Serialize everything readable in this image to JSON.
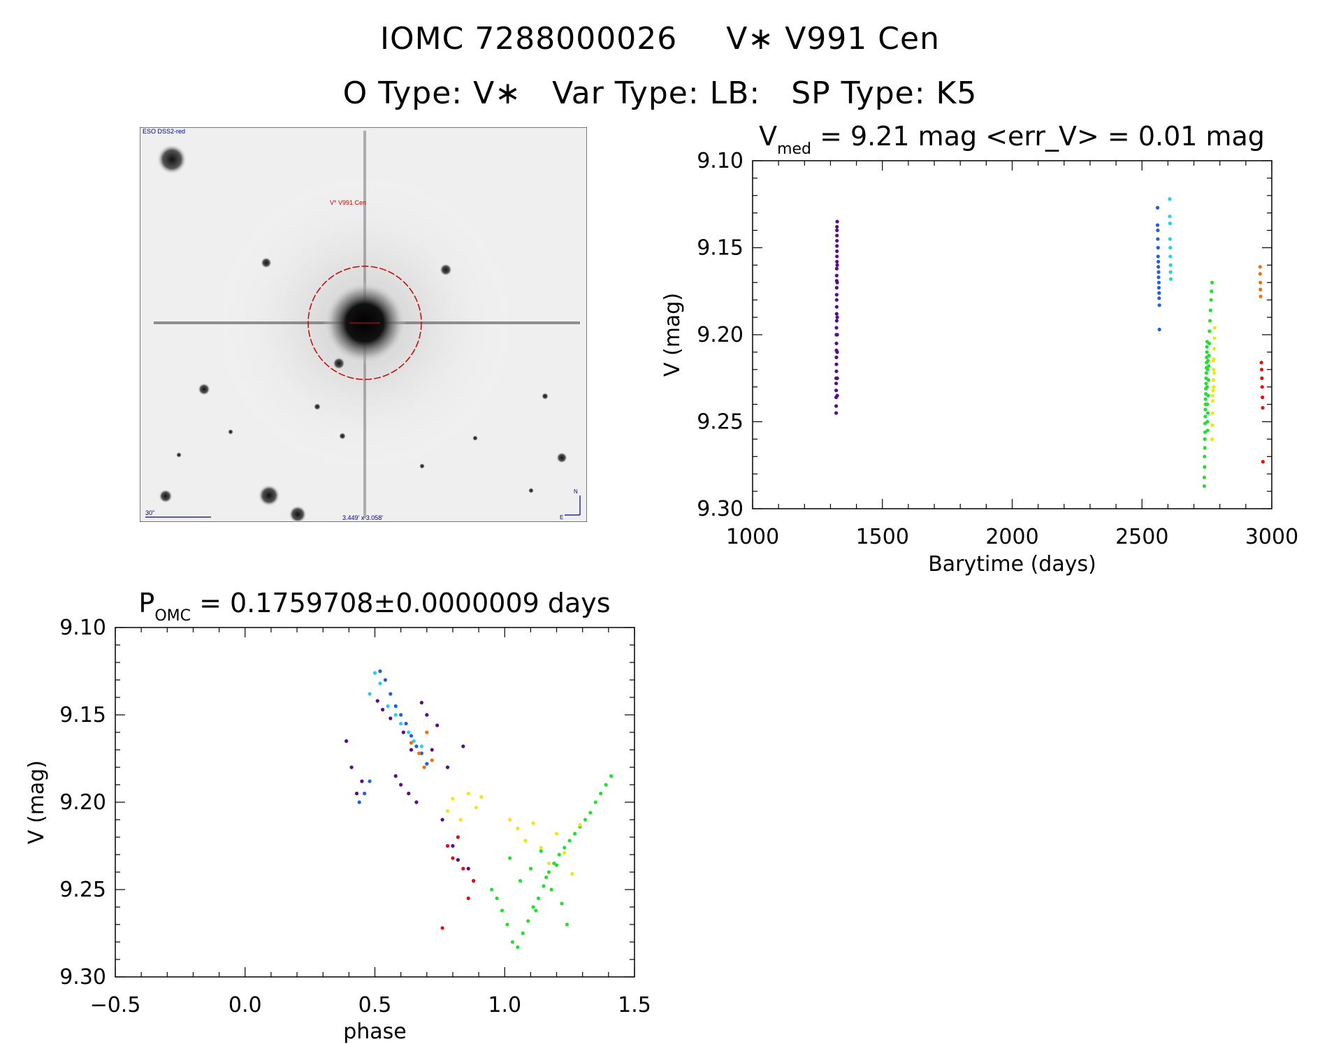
{
  "header": {
    "line1_id": "IOMC 7288000026",
    "line1_name": "V∗ V991 Cen",
    "line2_otype": "O Type: V∗",
    "line2_vartype": "Var Type: LB:",
    "line2_sptype": "SP Type: K5"
  },
  "finder_chart": {
    "survey_label": "ESO DSS2-red",
    "target_label": "V* V991 Cen",
    "scale_label": "30\"",
    "fov_label": "3.449' x 3.058'",
    "north_label": "N",
    "east_label": "E",
    "colors": {
      "annotation": "#000080",
      "circle": "#cc0000"
    }
  },
  "chart_data": [
    {
      "id": "light_curve",
      "type": "scatter",
      "title_main": "V",
      "title_sub": "med",
      "title_rest": "= 9.21 mag <err_V> = 0.01 mag",
      "xlabel": "Barytime (days)",
      "ylabel": "V (mag)",
      "xlim": [
        1000,
        3000
      ],
      "ylim": [
        9.3,
        9.1
      ],
      "y_inverted": true,
      "xticks": [
        1000,
        1500,
        2000,
        2500,
        3000
      ],
      "xtick_labels": [
        "1000",
        "1500",
        "2000",
        "2500",
        "3000"
      ],
      "yticks": [
        9.1,
        9.15,
        9.2,
        9.25,
        9.3
      ],
      "ytick_labels": [
        "9.10",
        "9.15",
        "9.20",
        "9.25",
        "9.30"
      ],
      "series": [
        {
          "color": "#5a0a8c",
          "x": [
            1322,
            1322,
            1322,
            1322,
            1322,
            1322,
            1323,
            1323,
            1323,
            1323,
            1323,
            1323,
            1323,
            1324,
            1324,
            1324,
            1324,
            1324,
            1324,
            1324,
            1324,
            1324,
            1325,
            1325,
            1325,
            1325,
            1325,
            1325,
            1325,
            1325,
            1326,
            1326,
            1326,
            1326,
            1326,
            1326,
            1326,
            1326
          ],
          "y": [
            9.245,
            9.241,
            9.236,
            9.232,
            9.228,
            9.225,
            9.221,
            9.217,
            9.213,
            9.209,
            9.205,
            9.2,
            9.196,
            9.192,
            9.188,
            9.184,
            9.18,
            9.177,
            9.173,
            9.169,
            9.166,
            9.162,
            9.158,
            9.155,
            9.152,
            9.149,
            9.146,
            9.143,
            9.14,
            9.138,
            9.135,
            9.16,
            9.17,
            9.19,
            9.2,
            9.21,
            9.225,
            9.235
          ]
        },
        {
          "color": "#1f5fe0",
          "x": [
            2560,
            2560,
            2561,
            2561,
            2562,
            2562,
            2563,
            2563,
            2564,
            2564,
            2565,
            2565,
            2566,
            2566,
            2567,
            2567
          ],
          "y": [
            9.127,
            9.137,
            9.14,
            9.145,
            9.15,
            9.155,
            9.158,
            9.161,
            9.164,
            9.167,
            9.17,
            9.173,
            9.176,
            9.179,
            9.183,
            9.197
          ]
        },
        {
          "color": "#22d3df",
          "x": [
            2607,
            2607,
            2608,
            2608,
            2609,
            2609,
            2610,
            2610,
            2611
          ],
          "y": [
            9.122,
            9.132,
            9.136,
            9.145,
            9.15,
            9.155,
            9.16,
            9.164,
            9.168
          ]
        },
        {
          "color": "#22e030",
          "x": [
            2740,
            2740,
            2741,
            2741,
            2742,
            2742,
            2743,
            2743,
            2744,
            2744,
            2745,
            2745,
            2746,
            2746,
            2747,
            2747,
            2748,
            2748,
            2749,
            2749,
            2750,
            2750,
            2751,
            2751,
            2752,
            2752,
            2753,
            2753,
            2754,
            2754,
            2755,
            2756,
            2757,
            2758,
            2759,
            2760,
            2762,
            2764,
            2766,
            2768,
            2770
          ],
          "y": [
            9.287,
            9.282,
            9.276,
            9.27,
            9.265,
            9.26,
            9.256,
            9.251,
            9.247,
            9.243,
            9.24,
            9.237,
            9.234,
            9.231,
            9.228,
            9.225,
            9.222,
            9.219,
            9.216,
            9.213,
            9.21,
            9.207,
            9.204,
            9.23,
            9.24,
            9.25,
            9.255,
            9.22,
            9.215,
            9.245,
            9.235,
            9.226,
            9.218,
            9.212,
            9.205,
            9.198,
            9.192,
            9.186,
            9.18,
            9.175,
            9.17
          ]
        },
        {
          "color": "#eaea10",
          "x": [
            2770,
            2771,
            2772,
            2773,
            2774,
            2775,
            2776,
            2777,
            2778,
            2779,
            2780,
            2772,
            2774,
            2776,
            2778
          ],
          "y": [
            9.26,
            9.252,
            9.245,
            9.238,
            9.232,
            9.226,
            9.22,
            9.214,
            9.208,
            9.202,
            9.196,
            9.235,
            9.215,
            9.23,
            9.222
          ]
        },
        {
          "color": "#f07010",
          "x": [
            2955,
            2955,
            2956,
            2956,
            2957
          ],
          "y": [
            9.161,
            9.165,
            9.17,
            9.174,
            9.178
          ]
        },
        {
          "color": "#e01010",
          "x": [
            2960,
            2961,
            2962,
            2963,
            2964,
            2965,
            2966
          ],
          "y": [
            9.216,
            9.22,
            9.225,
            9.23,
            9.236,
            9.242,
            9.273
          ]
        }
      ]
    },
    {
      "id": "phased_curve",
      "type": "scatter",
      "title_main": "P",
      "title_sub": "OMC",
      "title_rest": "= 0.1759708±0.0000009 days",
      "xlabel": "phase",
      "ylabel": "V (mag)",
      "xlim": [
        -0.5,
        1.5
      ],
      "ylim": [
        9.3,
        9.1
      ],
      "y_inverted": true,
      "xticks": [
        -0.5,
        0.0,
        0.5,
        1.0,
        1.5
      ],
      "xtick_labels": [
        "−0.5",
        "0.0",
        "0.5",
        "1.0",
        "1.5"
      ],
      "yticks": [
        9.1,
        9.15,
        9.2,
        9.25,
        9.3
      ],
      "ytick_labels": [
        "9.10",
        "9.15",
        "9.20",
        "9.25",
        "9.30"
      ],
      "series": [
        {
          "color": "#5a0a8c",
          "x": [
            0.51,
            0.53,
            0.56,
            0.58,
            0.6,
            0.61,
            0.63,
            0.64,
            0.66,
            0.68,
            0.7,
            0.72,
            0.74,
            0.76,
            0.78,
            0.8,
            0.82,
            0.84,
            0.86,
            0.88,
            0.39,
            0.41,
            0.43,
            0.45
          ],
          "y": [
            9.142,
            9.147,
            9.152,
            9.185,
            9.19,
            9.16,
            9.195,
            9.17,
            9.2,
            9.143,
            9.15,
            9.17,
            9.156,
            9.21,
            9.18,
            9.225,
            9.233,
            9.168,
            9.238,
            9.245,
            9.165,
            9.18,
            9.195,
            9.188
          ]
        },
        {
          "color": "#1f5fe0",
          "x": [
            0.52,
            0.54,
            0.56,
            0.58,
            0.6,
            0.62,
            0.64,
            0.66,
            0.68,
            0.7,
            0.44,
            0.46,
            0.48
          ],
          "y": [
            9.125,
            9.13,
            9.138,
            9.145,
            9.15,
            9.155,
            9.162,
            9.168,
            9.172,
            9.178,
            9.2,
            9.195,
            9.188
          ]
        },
        {
          "color": "#22d3df",
          "x": [
            0.48,
            0.5,
            0.52,
            0.55,
            0.58,
            0.6,
            0.63,
            0.65,
            0.68
          ],
          "y": [
            9.138,
            9.126,
            9.132,
            9.145,
            9.15,
            9.155,
            9.16,
            9.165,
            9.168
          ]
        },
        {
          "color": "#22e030",
          "x": [
            0.95,
            0.97,
            0.99,
            1.01,
            1.03,
            1.05,
            1.07,
            1.09,
            1.11,
            1.13,
            1.15,
            1.17,
            1.19,
            1.21,
            1.23,
            1.25,
            1.27,
            1.29,
            1.31,
            1.33,
            1.35,
            1.37,
            1.39,
            1.41,
            1.02,
            1.06,
            1.1,
            1.14,
            1.18,
            1.22,
            1.08,
            1.12,
            1.16,
            1.2,
            1.24
          ],
          "y": [
            9.25,
            9.255,
            9.262,
            9.27,
            9.28,
            9.283,
            9.275,
            9.268,
            9.26,
            9.255,
            9.248,
            9.24,
            9.235,
            9.23,
            9.226,
            9.222,
            9.218,
            9.214,
            9.21,
            9.206,
            9.2,
            9.195,
            9.19,
            9.185,
            9.232,
            9.245,
            9.238,
            9.228,
            9.25,
            9.258,
            9.222,
            9.262,
            9.243,
            9.236,
            9.27
          ]
        },
        {
          "color": "#eaea10",
          "x": [
            1.02,
            1.05,
            1.08,
            1.11,
            1.14,
            1.17,
            1.2,
            1.23,
            1.26,
            1.29,
            0.78,
            0.8,
            0.83,
            0.86,
            0.89,
            0.91
          ],
          "y": [
            9.21,
            9.215,
            9.222,
            9.212,
            9.226,
            9.235,
            9.218,
            9.229,
            9.241,
            9.213,
            9.205,
            9.198,
            9.21,
            9.195,
            9.203,
            9.197
          ]
        },
        {
          "color": "#f07010",
          "x": [
            0.64,
            0.67,
            0.7,
            0.72,
            0.69
          ],
          "y": [
            9.166,
            9.172,
            9.16,
            9.176,
            9.18
          ]
        },
        {
          "color": "#e01010",
          "x": [
            0.76,
            0.78,
            0.8,
            0.82,
            0.84,
            0.86,
            0.88
          ],
          "y": [
            9.272,
            9.225,
            9.232,
            9.22,
            9.238,
            9.255,
            9.245
          ]
        }
      ]
    }
  ]
}
